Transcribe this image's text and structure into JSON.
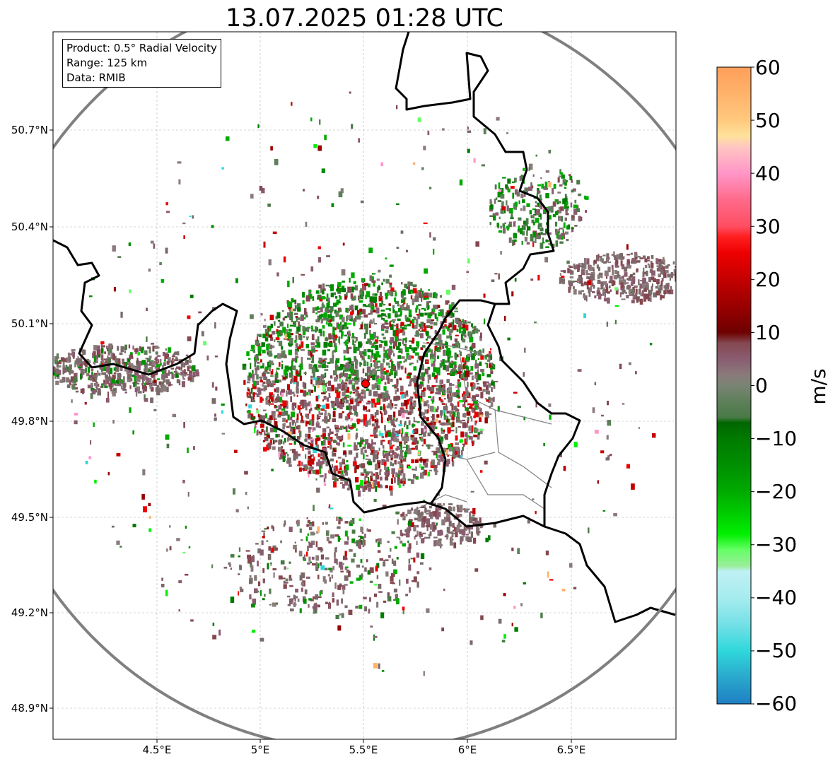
{
  "title": "13.07.2025 01:28 UTC",
  "info_box": {
    "lines": [
      "Product: 0.5° Radial Velocity",
      "Range: 125 km",
      "Data: RMIB"
    ]
  },
  "axes": {
    "lat_labels": [
      "50.7°N",
      "50.4°N",
      "50.1°N",
      "49.8°N",
      "49.5°N",
      "49.2°N",
      "48.9°N"
    ],
    "lon_labels": [
      "4.5°E",
      "5°E",
      "5.5°E",
      "6°E",
      "6.5°E"
    ]
  },
  "colorbar": {
    "label": "m/s",
    "ticks": [
      "60",
      "50",
      "40",
      "30",
      "20",
      "10",
      "0",
      "−10",
      "−20",
      "−30",
      "−40",
      "−50",
      "−60"
    ],
    "range": [
      -60,
      60
    ],
    "stops": [
      {
        "v": 60,
        "c": "#ff9f5a"
      },
      {
        "v": 55,
        "c": "#ffb26b"
      },
      {
        "v": 50,
        "c": "#ffc97e"
      },
      {
        "v": 47,
        "c": "#ffe29a"
      },
      {
        "v": 45,
        "c": "#ffc6c2"
      },
      {
        "v": 40,
        "c": "#ff96c8"
      },
      {
        "v": 35,
        "c": "#ff6a8a"
      },
      {
        "v": 30,
        "c": "#ff4e62"
      },
      {
        "v": 28,
        "c": "#ff1e1e"
      },
      {
        "v": 25,
        "c": "#ee0000"
      },
      {
        "v": 20,
        "c": "#c40000"
      },
      {
        "v": 15,
        "c": "#9a0000"
      },
      {
        "v": 10,
        "c": "#6e0000"
      },
      {
        "v": 8,
        "c": "#844850"
      },
      {
        "v": 5,
        "c": "#8a5c70"
      },
      {
        "v": 2,
        "c": "#8a7a7a"
      },
      {
        "v": 0,
        "c": "#7a8474"
      },
      {
        "v": -3,
        "c": "#5e7f5a"
      },
      {
        "v": -6,
        "c": "#497a46"
      },
      {
        "v": -7,
        "c": "#006600"
      },
      {
        "v": -10,
        "c": "#007a00"
      },
      {
        "v": -15,
        "c": "#008f00"
      },
      {
        "v": -20,
        "c": "#00aa00"
      },
      {
        "v": -25,
        "c": "#00d400"
      },
      {
        "v": -28,
        "c": "#00f000"
      },
      {
        "v": -31,
        "c": "#66ff66"
      },
      {
        "v": -34,
        "c": "#99ee99"
      },
      {
        "v": -35,
        "c": "#bff0f4"
      },
      {
        "v": -40,
        "c": "#a6ecef"
      },
      {
        "v": -45,
        "c": "#74e0e6"
      },
      {
        "v": -50,
        "c": "#2fd8dc"
      },
      {
        "v": -55,
        "c": "#2aa8cc"
      },
      {
        "v": -60,
        "c": "#1f7fc4"
      }
    ]
  },
  "colors": {
    "range_ring": "#808080",
    "border": "#000000",
    "admin_lines": "#808080",
    "radar_site": "#ff0000"
  },
  "radar_site": {
    "lon": 5.505,
    "lat": 49.914
  }
}
